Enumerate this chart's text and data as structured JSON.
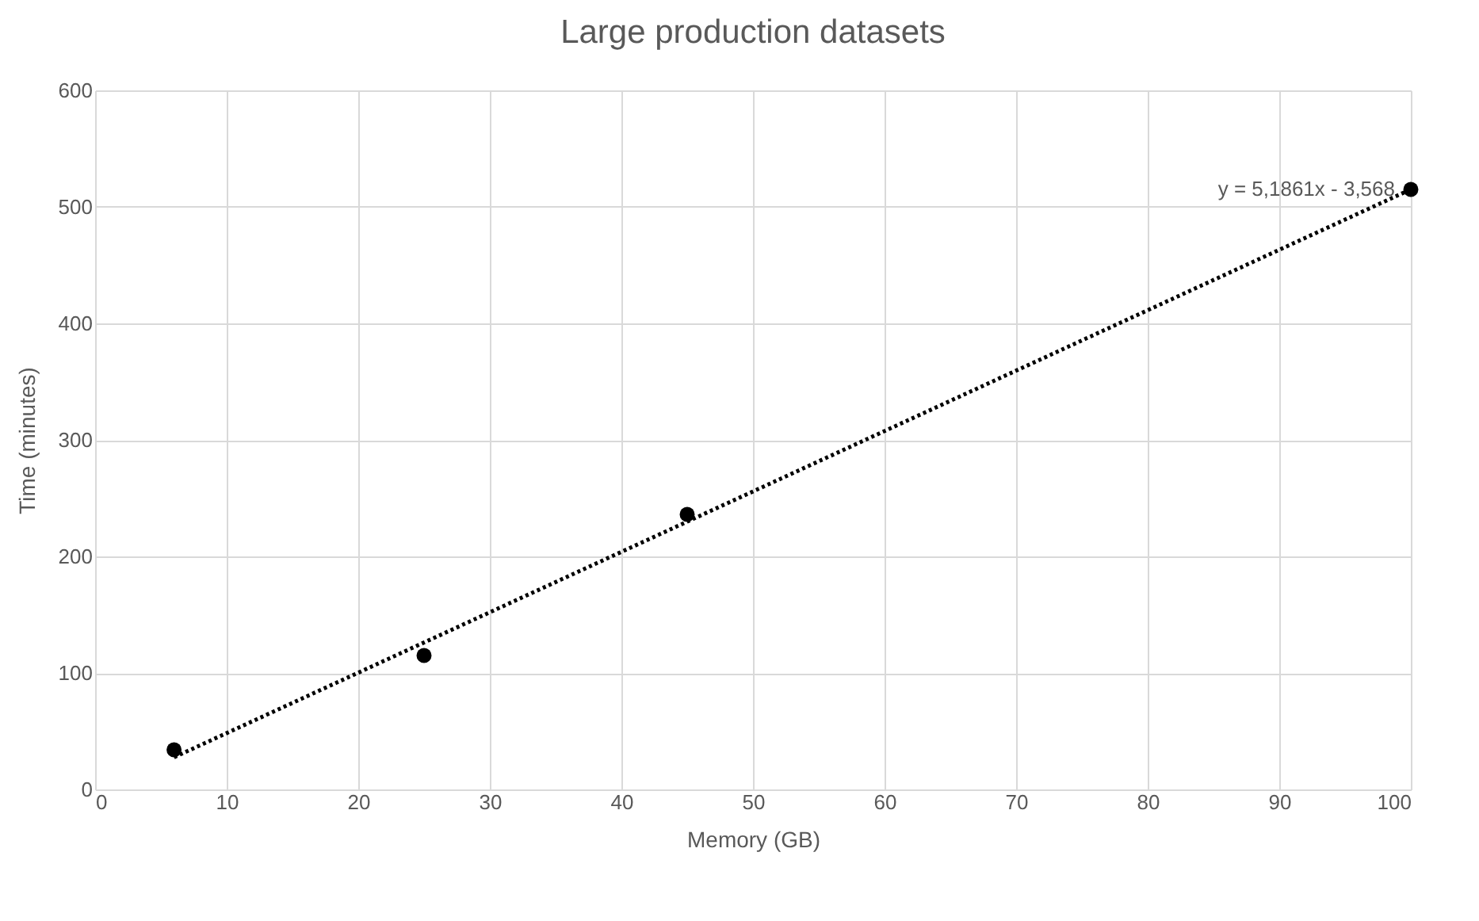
{
  "chart_data": {
    "type": "scatter",
    "title": "Large production datasets",
    "xlabel": "Memory (GB)",
    "ylabel": "Time (minutes)",
    "xlim": [
      0,
      100
    ],
    "xticks": [
      0,
      10,
      20,
      30,
      40,
      50,
      60,
      70,
      80,
      90,
      100
    ],
    "ylim": [
      0,
      600
    ],
    "yticks": [
      0,
      100,
      200,
      300,
      400,
      500,
      600
    ],
    "grid": true,
    "series": [
      {
        "type": "scatter",
        "color": "#000000",
        "marker": "circle",
        "x": [
          6,
          25,
          45,
          100
        ],
        "values": [
          34,
          115,
          236,
          515
        ]
      },
      {
        "type": "line",
        "color": "#000000",
        "marker": "none",
        "line_style": "dotted",
        "x": [
          6,
          100
        ],
        "values": [
          27.6,
          515
        ]
      }
    ],
    "annotations": [
      {
        "text": "y = 5,1861x - 3,568",
        "x": 100,
        "y": 515
      }
    ]
  }
}
